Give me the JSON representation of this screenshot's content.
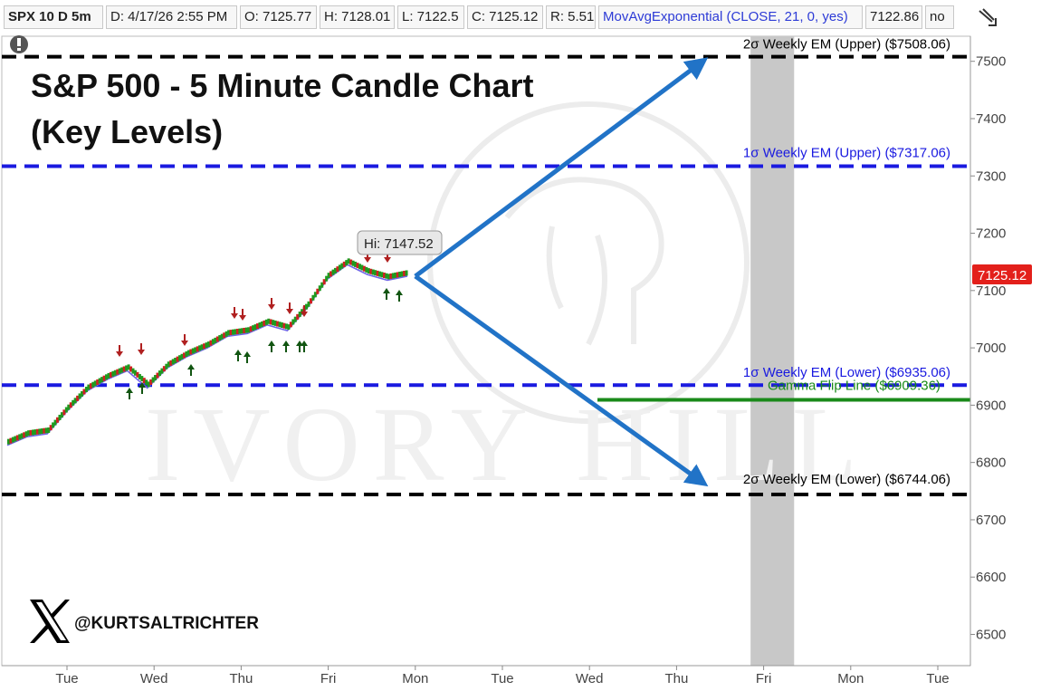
{
  "header": {
    "symbol": "SPX 10 D 5m",
    "date": "D: 4/17/26 2:55 PM",
    "open": "O: 7125.77",
    "high": "H: 7128.01",
    "low": "L: 7122.5",
    "close": "C: 7125.12",
    "range": "R: 5.51",
    "study": "MovAvgExponential (CLOSE, 21, 0, yes)",
    "study_value": "7122.86",
    "no": "no"
  },
  "annotation": {
    "title_line1": "S&P 500 - 5 Minute Candle Chart",
    "title_line2": "(Key Levels)",
    "hi_callout": "Hi: 7147.52",
    "price_tag": "7125.12",
    "handle": "@KURTSALTRICHTER",
    "watermark": "IVORY HILL"
  },
  "chart_data": {
    "type": "line",
    "title": "S&P 500 - 5 Minute Candle Chart (Key Levels)",
    "x_ticks": [
      "Tue",
      "Wed",
      "Thu",
      "Fri",
      "Mon",
      "Tue",
      "Wed",
      "Thu",
      "Fri",
      "Mon",
      "Tue"
    ],
    "y_ticks": [
      6500,
      6600,
      6700,
      6800,
      6900,
      7000,
      7100,
      7200,
      7300,
      7400,
      7500
    ],
    "ylim": [
      6445,
      7560
    ],
    "grid": false,
    "last_price": 7125.12,
    "series": [
      {
        "name": "",
        "x": [
          0.0,
          0.2,
          0.4,
          0.6,
          0.8,
          1.0,
          1.2,
          1.4,
          1.6,
          1.8,
          2.0,
          2.2,
          2.4,
          2.6,
          2.8,
          3.0,
          3.2,
          3.4,
          3.6,
          3.8,
          4.0
        ],
        "values": [
          6830,
          6845,
          6850,
          6890,
          6925,
          6945,
          6960,
          6930,
          6965,
          6985,
          7000,
          7020,
          7025,
          7040,
          7030,
          7070,
          7120,
          7145,
          7128,
          7118,
          7125
        ]
      }
    ],
    "levels": [
      {
        "label": "2σ Weekly EM (Upper) ($7508.06)",
        "value": 7508.06,
        "color": "#000000"
      },
      {
        "label": "1σ Weekly EM (Upper) ($7317.06)",
        "value": 7317.06,
        "color": "#1a1ae0"
      },
      {
        "label": "1σ Weekly EM (Lower) ($6935.06)",
        "value": 6935.06,
        "color": "#1a1ae0"
      },
      {
        "label": "Gamma Flip Line ($6909.36)",
        "value": 6909.36,
        "color": "#1a8a1a"
      },
      {
        "label": "2σ Weekly EM (Lower) ($6744.06)",
        "value": 6744.06,
        "color": "#000000"
      }
    ],
    "projections": [
      {
        "from": [
          4.0,
          7125
        ],
        "to": [
          7.3,
          7500
        ]
      },
      {
        "from": [
          4.0,
          7125
        ],
        "to": [
          7.3,
          6765
        ]
      }
    ],
    "shaded_x_range": [
      7.85,
      8.35
    ]
  }
}
